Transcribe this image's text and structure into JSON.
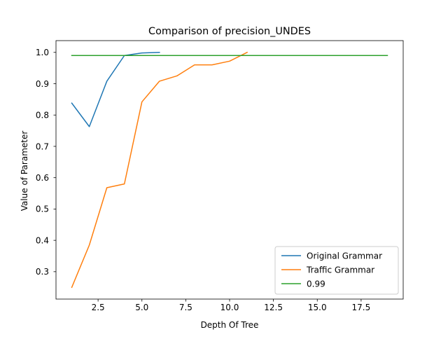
{
  "chart_data": {
    "type": "line",
    "title": "Comparison of precision_UNDES",
    "xlabel": "Depth Of Tree",
    "ylabel": "Value of Parameter",
    "xlim": [
      0.1,
      19.9
    ],
    "ylim": [
      0.2125,
      1.0375
    ],
    "xticks": [
      2.5,
      5.0,
      7.5,
      10.0,
      12.5,
      15.0,
      17.5
    ],
    "xtick_labels": [
      "2.5",
      "5.0",
      "7.5",
      "10.0",
      "12.5",
      "15.0",
      "17.5"
    ],
    "yticks": [
      0.3,
      0.4,
      0.5,
      0.6,
      0.7,
      0.8,
      0.9,
      1.0
    ],
    "ytick_labels": [
      "0.3",
      "0.4",
      "0.5",
      "0.6",
      "0.7",
      "0.8",
      "0.9",
      "1.0"
    ],
    "grid": false,
    "legend_position": "lower-right",
    "series": [
      {
        "name": "Original Grammar",
        "color": "#1f77b4",
        "x": [
          1,
          2,
          3,
          4,
          5,
          6
        ],
        "y": [
          0.838,
          0.763,
          0.908,
          0.99,
          0.998,
          1.0
        ]
      },
      {
        "name": "Traffic Grammar",
        "color": "#ff7f0e",
        "x": [
          1,
          2,
          3,
          4,
          5,
          6,
          7,
          8,
          9,
          10,
          11
        ],
        "y": [
          0.25,
          0.385,
          0.568,
          0.58,
          0.842,
          0.908,
          0.925,
          0.96,
          0.96,
          0.972,
          1.0
        ]
      },
      {
        "name": "0.99",
        "color": "#2ca02c",
        "x": [
          1,
          19
        ],
        "y": [
          0.99,
          0.99
        ]
      }
    ]
  }
}
